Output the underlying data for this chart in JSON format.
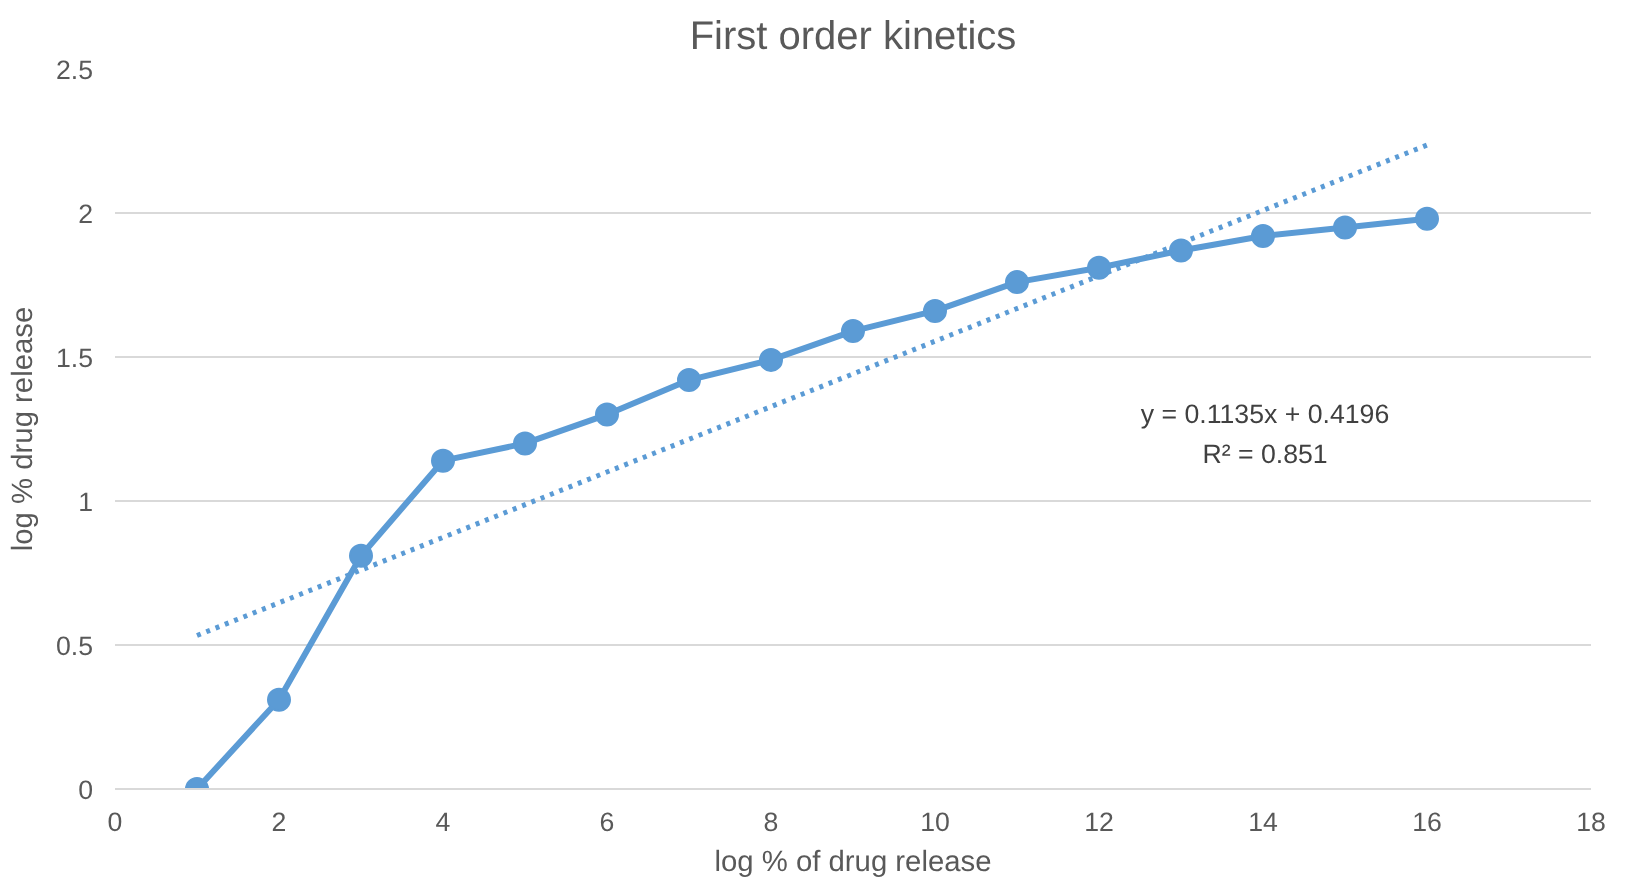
{
  "chart_data": {
    "type": "line",
    "title": "First order kinetics",
    "xlabel": "log % of drug release",
    "ylabel": "log % drug release",
    "xlim": [
      0,
      18
    ],
    "xticks": [
      0,
      2,
      4,
      6,
      8,
      10,
      12,
      14,
      16,
      18
    ],
    "ylim": [
      0,
      2.5
    ],
    "yticks": [
      0,
      0.5,
      1,
      1.5,
      2,
      2.5
    ],
    "grid": "y",
    "series": [
      {
        "marker": "circle",
        "line_style": "solid",
        "color": "#5b9bd5",
        "x": [
          1,
          2,
          3,
          4,
          5,
          6,
          7,
          8,
          9,
          10,
          11,
          12,
          13,
          14,
          15,
          16
        ],
        "values": [
          0,
          0.31,
          0.81,
          1.14,
          1.2,
          1.3,
          1.42,
          1.49,
          1.59,
          1.66,
          1.76,
          1.81,
          1.87,
          1.92,
          1.95,
          1.98
        ]
      },
      {
        "marker": "none",
        "line_style": "dotted",
        "color": "#5b9bd5",
        "x": [
          1,
          16
        ],
        "values": [
          0.533,
          2.236
        ]
      }
    ],
    "annotations": [
      "y = 0.1135x + 0.4196",
      "R² = 0.851"
    ]
  }
}
